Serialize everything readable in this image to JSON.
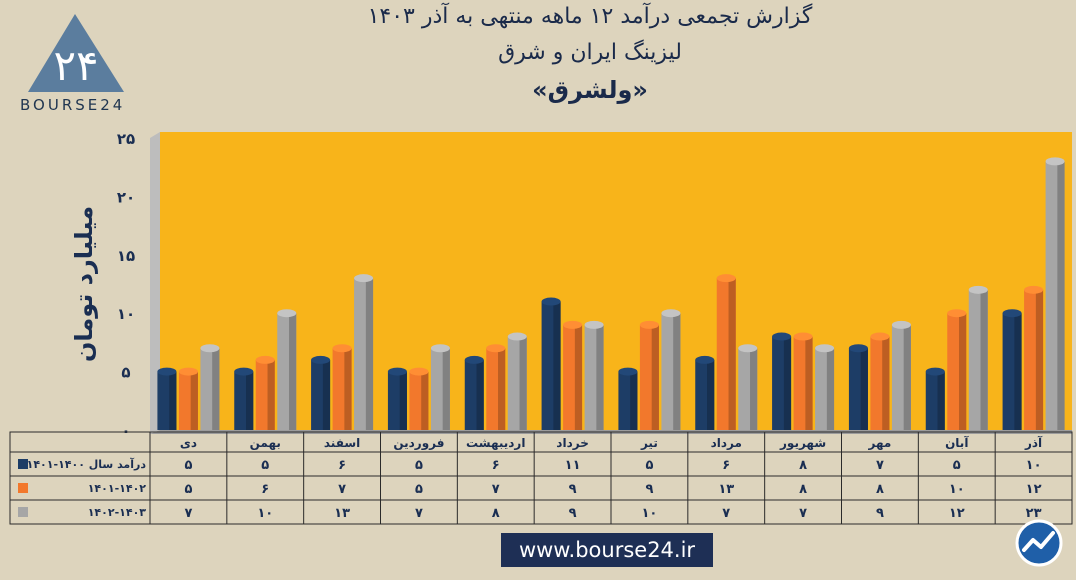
{
  "header": {
    "title_line1": "گزارش تجمعی درآمد ۱۲ ماهه منتهی به آذر ۱۴۰۳",
    "title_line2": "لیزینگ ایران و شرق",
    "title_line3": "«ولشرق»"
  },
  "logo": {
    "text": "BOURSE24",
    "mark": "۲۴"
  },
  "footer": {
    "url": "www.bourse24.ir",
    "brand_icon": "bourse24-trend-icon"
  },
  "colors": {
    "series_1": "#1d3d66",
    "series_2": "#f2782c",
    "series_3": "#a6a6a6",
    "plot_bg": "#f8b41a",
    "plot_side": "#b8b8b8"
  },
  "chart_data": {
    "type": "bar",
    "categories": [
      "دی",
      "بهمن",
      "اسفند",
      "فروردین",
      "اردیبهشت",
      "خرداد",
      "تیر",
      "مرداد",
      "شهریور",
      "مهر",
      "آبان",
      "آذر"
    ],
    "series": [
      {
        "name": "درآمد سال ۱۴۰۰-۱۴۰۱",
        "values": [
          5,
          5,
          6,
          5,
          6,
          11,
          5,
          6,
          8,
          7,
          5,
          10
        ]
      },
      {
        "name": "۱۴۰۱-۱۴۰۲",
        "values": [
          5,
          6,
          7,
          5,
          7,
          9,
          9,
          13,
          8,
          8,
          10,
          12
        ]
      },
      {
        "name": "۱۴۰۲-۱۴۰۳",
        "values": [
          7,
          10,
          13,
          7,
          8,
          9,
          10,
          7,
          7,
          9,
          12,
          23
        ]
      }
    ],
    "table_values": [
      [
        "۵",
        "۵",
        "۶",
        "۵",
        "۶",
        "۱۱",
        "۵",
        "۶",
        "۸",
        "۷",
        "۵",
        "۱۰"
      ],
      [
        "۵",
        "۶",
        "۷",
        "۵",
        "۷",
        "۹",
        "۹",
        "۱۳",
        "۸",
        "۸",
        "۱۰",
        "۱۲"
      ],
      [
        "۷",
        "۱۰",
        "۱۳",
        "۷",
        "۸",
        "۹",
        "۱۰",
        "۷",
        "۷",
        "۹",
        "۱۲",
        "۲۳"
      ]
    ],
    "ylabel": "میلیارد تومان",
    "ylim": [
      0,
      25
    ],
    "yticks": [
      0,
      5,
      10,
      15,
      20,
      25
    ],
    "ytick_labels": [
      "۰",
      "۵",
      "۱۰",
      "۱۵",
      "۲۰",
      "۲۵"
    ],
    "grid": false,
    "legend": "data-table"
  }
}
